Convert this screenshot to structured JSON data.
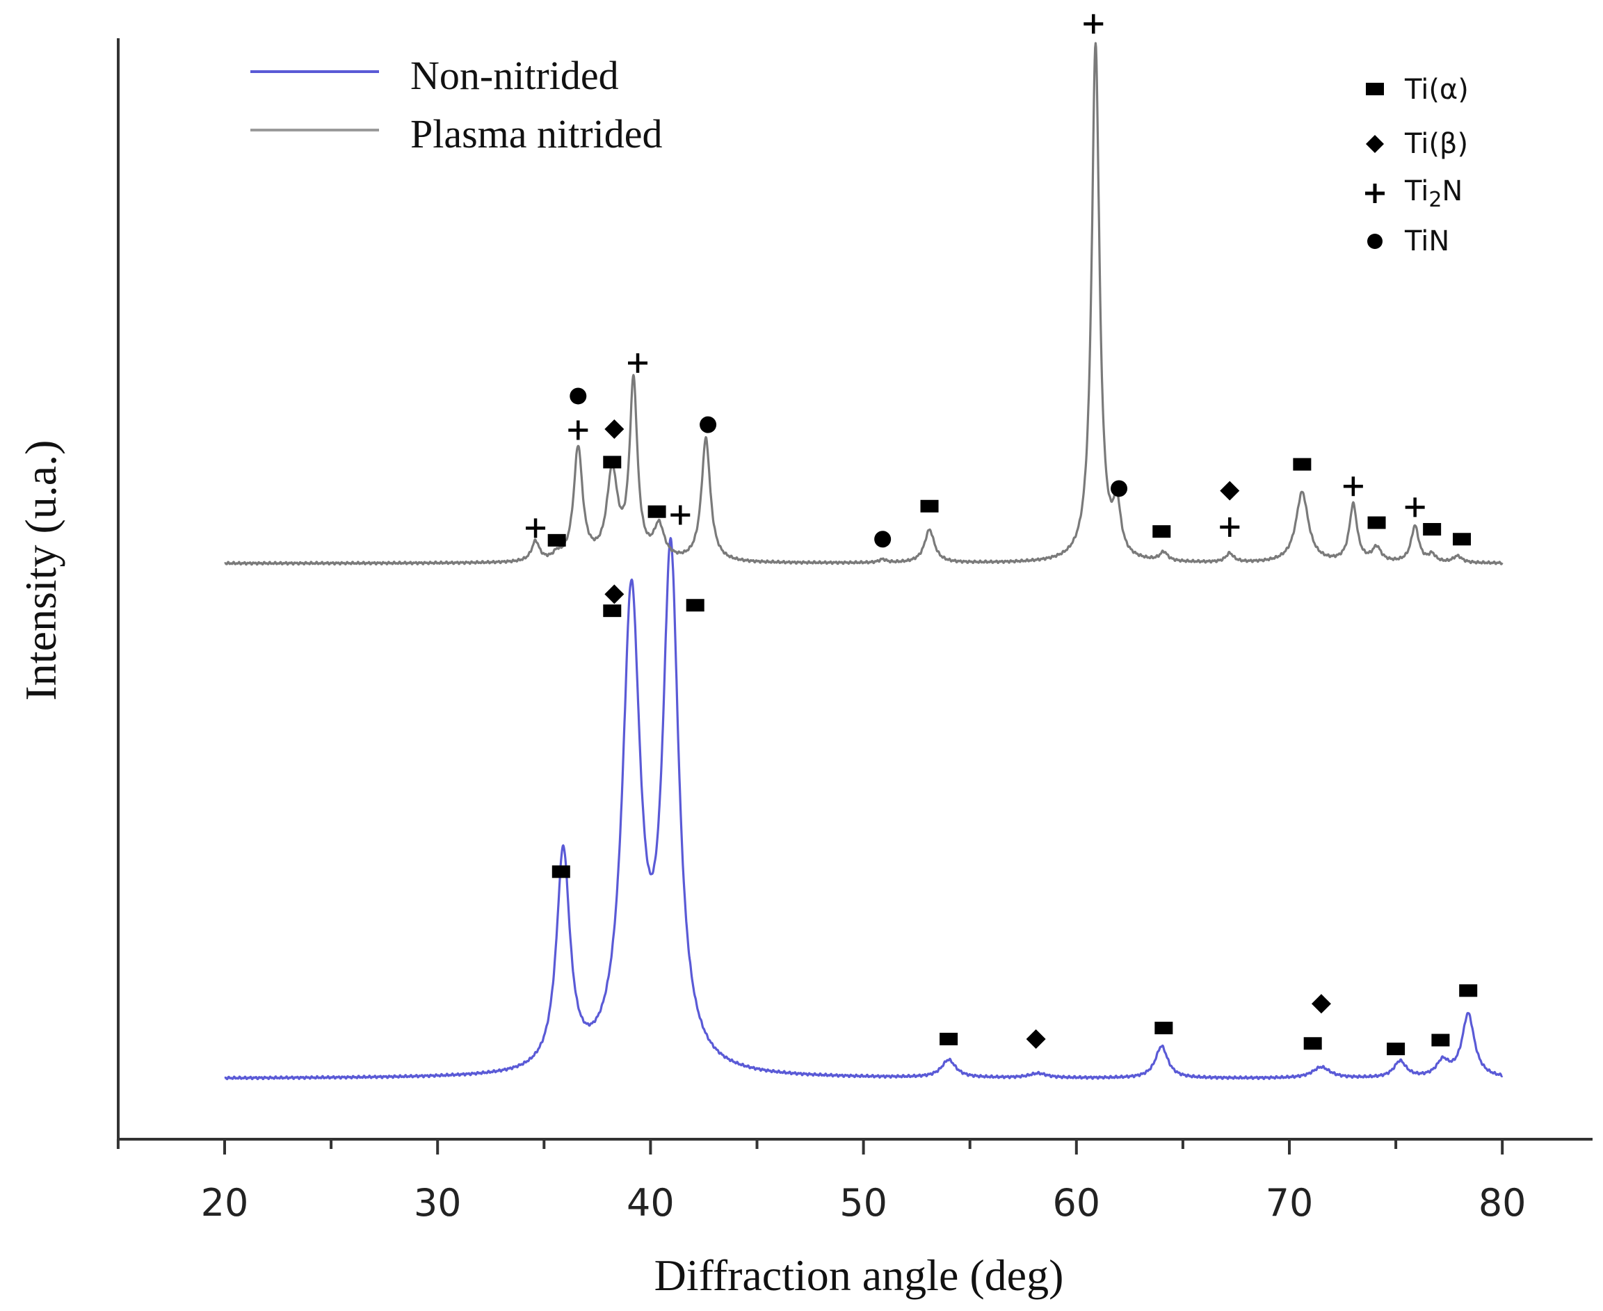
{
  "chart_data": {
    "type": "line",
    "title": "",
    "xlabel": "Diffraction angle (deg)",
    "ylabel": "Intensity (u.a.)",
    "xlim": [
      15,
      84
    ],
    "ylim": [
      0,
      100
    ],
    "x_ticks": [
      20,
      30,
      40,
      50,
      60,
      70,
      80
    ],
    "x_tick_labels": [
      "20",
      "30",
      "40",
      "50",
      "60",
      "70",
      "80"
    ],
    "grid": false,
    "series": [
      {
        "name": "Non-nitrided",
        "color": "#5a5ad6",
        "baseline": 5.5,
        "peaks": [
          {
            "x": 35.9,
            "height": 19.8,
            "width": 0.38
          },
          {
            "x": 39.1,
            "height": 42.5,
            "width": 0.5
          },
          {
            "x": 40.95,
            "height": 46.0,
            "width": 0.45
          },
          {
            "x": 54.0,
            "height": 1.6,
            "width": 0.4
          },
          {
            "x": 58.2,
            "height": 0.4,
            "width": 0.5
          },
          {
            "x": 64.0,
            "height": 2.9,
            "width": 0.35
          },
          {
            "x": 71.5,
            "height": 1.0,
            "width": 0.5
          },
          {
            "x": 75.2,
            "height": 1.5,
            "width": 0.35
          },
          {
            "x": 77.2,
            "height": 1.4,
            "width": 0.35
          },
          {
            "x": 78.4,
            "height": 5.8,
            "width": 0.35
          }
        ]
      },
      {
        "name": "Plasma nitrided",
        "color": "#7a7a7a",
        "baseline": 52.3,
        "peaks": [
          {
            "x": 34.6,
            "height": 1.8,
            "width": 0.22
          },
          {
            "x": 35.6,
            "height": 0.5,
            "width": 0.2
          },
          {
            "x": 36.6,
            "height": 10.3,
            "width": 0.25
          },
          {
            "x": 38.2,
            "height": 8.0,
            "width": 0.3
          },
          {
            "x": 39.2,
            "height": 16.1,
            "width": 0.22
          },
          {
            "x": 40.4,
            "height": 3.0,
            "width": 0.3
          },
          {
            "x": 42.6,
            "height": 11.2,
            "width": 0.25
          },
          {
            "x": 50.9,
            "height": 0.3,
            "width": 0.2
          },
          {
            "x": 53.1,
            "height": 3.0,
            "width": 0.28
          },
          {
            "x": 60.9,
            "height": 47.0,
            "width": 0.22
          },
          {
            "x": 61.9,
            "height": 4.4,
            "width": 0.22
          },
          {
            "x": 64.1,
            "height": 0.8,
            "width": 0.22
          },
          {
            "x": 67.2,
            "height": 0.8,
            "width": 0.22
          },
          {
            "x": 70.6,
            "height": 6.4,
            "width": 0.35
          },
          {
            "x": 73.0,
            "height": 5.2,
            "width": 0.22
          },
          {
            "x": 74.1,
            "height": 1.3,
            "width": 0.25
          },
          {
            "x": 75.9,
            "height": 3.3,
            "width": 0.22
          },
          {
            "x": 76.7,
            "height": 0.7,
            "width": 0.2
          },
          {
            "x": 77.9,
            "height": 0.6,
            "width": 0.25
          }
        ]
      }
    ],
    "phase_legend": [
      {
        "symbol": "square",
        "label": "Ti(α)"
      },
      {
        "symbol": "diamond",
        "label": "Ti(β)"
      },
      {
        "symbol": "plus",
        "label": "Ti",
        "subscript": "2",
        "suffix": "N"
      },
      {
        "symbol": "circle",
        "label": "TiN"
      }
    ],
    "phase_markers": [
      {
        "series": "Non-nitrided",
        "x": 35.8,
        "y": 24.3,
        "symbol": "square"
      },
      {
        "series": "Non-nitrided",
        "x": 38.2,
        "y": 48.0,
        "symbol": "square"
      },
      {
        "series": "Non-nitrided",
        "x": 38.3,
        "y": 49.5,
        "symbol": "diamond"
      },
      {
        "series": "Non-nitrided",
        "x": 42.1,
        "y": 48.5,
        "symbol": "square"
      },
      {
        "series": "Non-nitrided",
        "x": 54.0,
        "y": 9.1,
        "symbol": "square"
      },
      {
        "series": "Non-nitrided",
        "x": 58.1,
        "y": 9.1,
        "symbol": "diamond"
      },
      {
        "series": "Non-nitrided",
        "x": 64.1,
        "y": 10.1,
        "symbol": "square"
      },
      {
        "series": "Non-nitrided",
        "x": 71.1,
        "y": 8.7,
        "symbol": "square"
      },
      {
        "series": "Non-nitrided",
        "x": 71.5,
        "y": 12.3,
        "symbol": "diamond"
      },
      {
        "series": "Non-nitrided",
        "x": 75.0,
        "y": 8.2,
        "symbol": "square"
      },
      {
        "series": "Non-nitrided",
        "x": 77.1,
        "y": 9.0,
        "symbol": "square"
      },
      {
        "series": "Non-nitrided",
        "x": 78.4,
        "y": 13.5,
        "symbol": "square"
      },
      {
        "series": "Plasma nitrided",
        "x": 34.6,
        "y": 55.5,
        "symbol": "plus"
      },
      {
        "series": "Plasma nitrided",
        "x": 35.6,
        "y": 54.4,
        "symbol": "square"
      },
      {
        "series": "Plasma nitrided",
        "x": 36.6,
        "y": 64.4,
        "symbol": "plus"
      },
      {
        "series": "Plasma nitrided",
        "x": 36.6,
        "y": 67.5,
        "symbol": "circle"
      },
      {
        "series": "Plasma nitrided",
        "x": 38.2,
        "y": 61.5,
        "symbol": "square"
      },
      {
        "series": "Plasma nitrided",
        "x": 38.3,
        "y": 64.5,
        "symbol": "diamond"
      },
      {
        "series": "Plasma nitrided",
        "x": 39.4,
        "y": 70.5,
        "symbol": "plus"
      },
      {
        "series": "Plasma nitrided",
        "x": 40.3,
        "y": 57.0,
        "symbol": "square"
      },
      {
        "series": "Plasma nitrided",
        "x": 41.4,
        "y": 56.7,
        "symbol": "plus"
      },
      {
        "series": "Plasma nitrided",
        "x": 42.7,
        "y": 64.9,
        "symbol": "circle"
      },
      {
        "series": "Plasma nitrided",
        "x": 50.9,
        "y": 54.5,
        "symbol": "circle"
      },
      {
        "series": "Plasma nitrided",
        "x": 53.1,
        "y": 57.5,
        "symbol": "square"
      },
      {
        "series": "Plasma nitrided",
        "x": 60.8,
        "y": 101.3,
        "symbol": "plus"
      },
      {
        "series": "Plasma nitrided",
        "x": 62.0,
        "y": 59.1,
        "symbol": "circle"
      },
      {
        "series": "Plasma nitrided",
        "x": 64.0,
        "y": 55.2,
        "symbol": "square"
      },
      {
        "series": "Plasma nitrided",
        "x": 67.2,
        "y": 55.6,
        "symbol": "plus"
      },
      {
        "series": "Plasma nitrided",
        "x": 67.2,
        "y": 58.9,
        "symbol": "diamond"
      },
      {
        "series": "Plasma nitrided",
        "x": 70.6,
        "y": 61.3,
        "symbol": "square"
      },
      {
        "series": "Plasma nitrided",
        "x": 73.0,
        "y": 59.3,
        "symbol": "plus"
      },
      {
        "series": "Plasma nitrided",
        "x": 74.1,
        "y": 56.0,
        "symbol": "square"
      },
      {
        "series": "Plasma nitrided",
        "x": 75.9,
        "y": 57.4,
        "symbol": "plus"
      },
      {
        "series": "Plasma nitrided",
        "x": 76.7,
        "y": 55.4,
        "symbol": "square"
      },
      {
        "series": "Plasma nitrided",
        "x": 78.1,
        "y": 54.5,
        "symbol": "square"
      }
    ]
  }
}
